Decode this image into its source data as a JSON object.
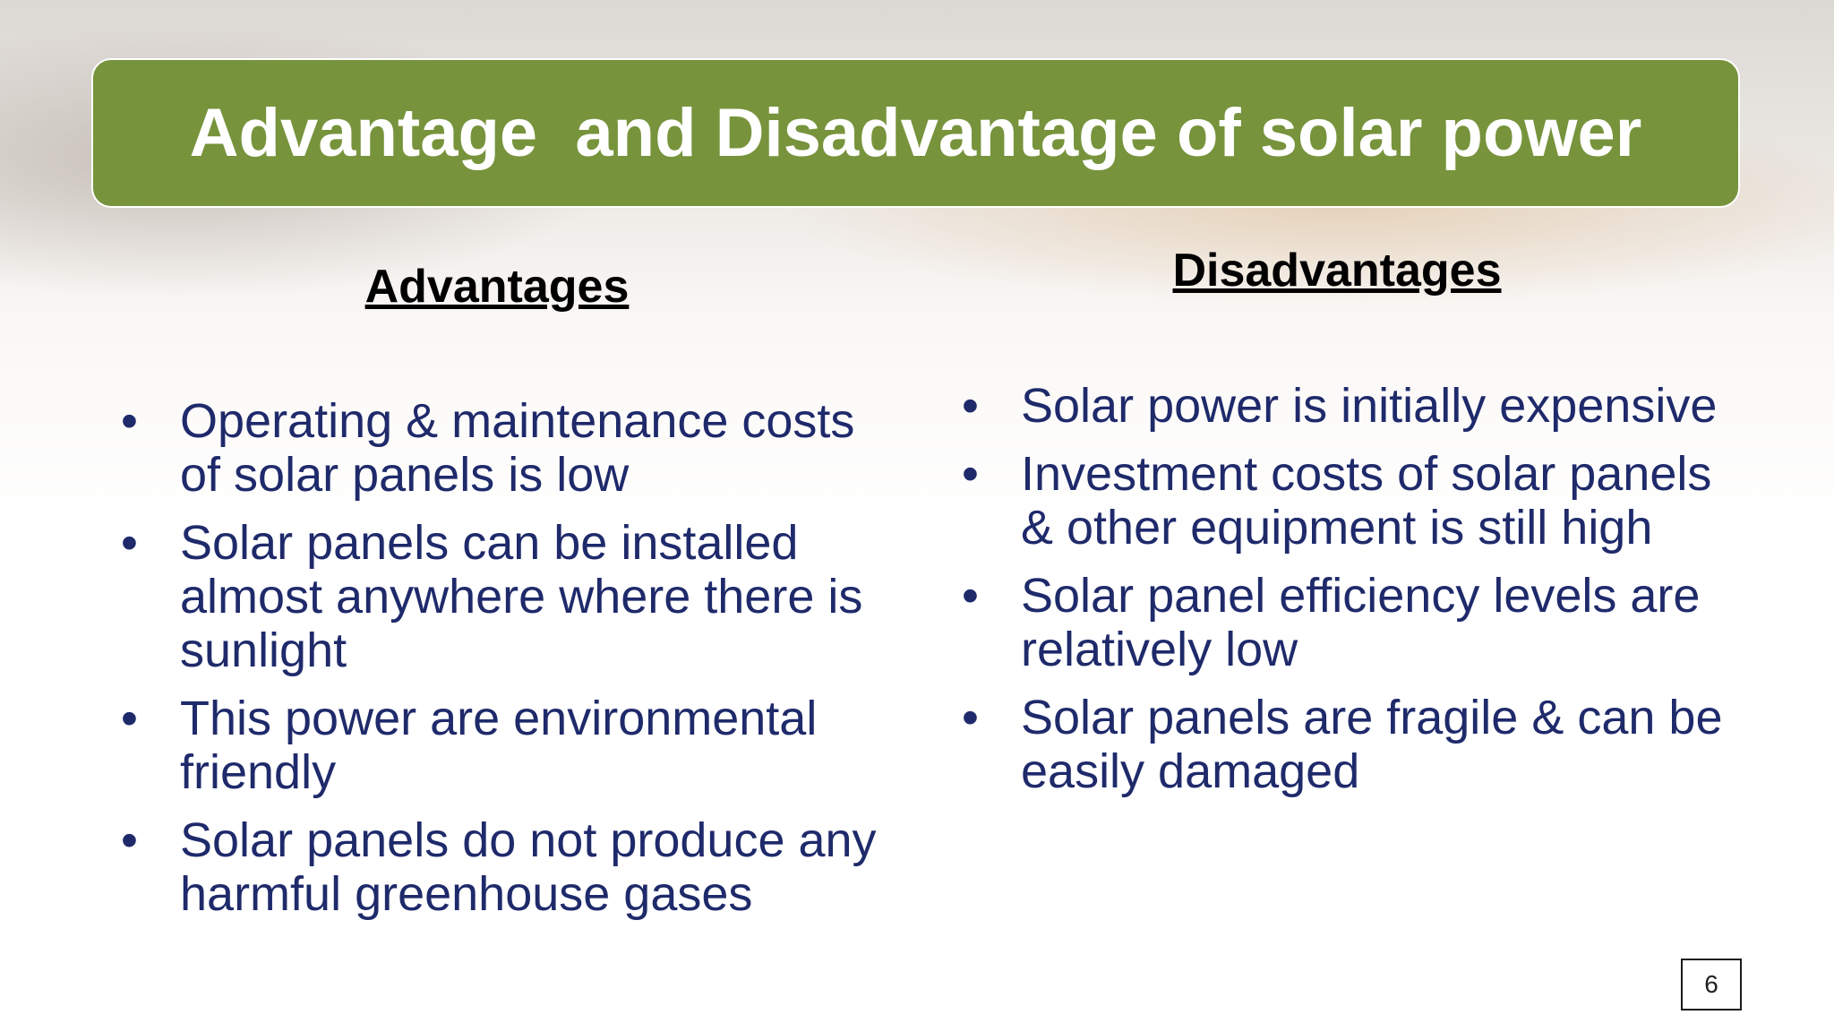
{
  "header": {
    "title": "Advantage  and Disadvantage of solar power"
  },
  "advantages": {
    "heading": "Advantages",
    "items": [
      "Operating & maintenance costs of solar panels is low",
      "Solar panels can be installed almost anywhere where there is sunlight",
      "This power are environmental friendly",
      "Solar panels do not produce any harmful greenhouse gases"
    ]
  },
  "disadvantages": {
    "heading": "Disadvantages",
    "items": [
      "Solar power is initially expensive",
      "Investment costs of solar panels & other equipment is still high",
      "Solar panel efficiency levels are relatively low",
      "Solar panels are fragile & can be easily damaged"
    ]
  },
  "page_number": "6"
}
